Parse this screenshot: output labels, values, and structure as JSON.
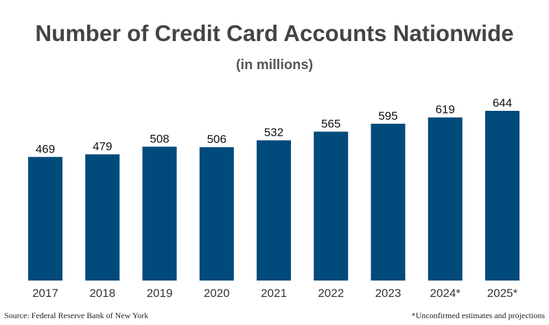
{
  "chart_data": {
    "type": "bar",
    "title": "Number of Credit Card Accounts Nationwide",
    "subtitle": "(in millions)",
    "categories": [
      "2017",
      "2018",
      "2019",
      "2020",
      "2021",
      "2022",
      "2023",
      "2024*",
      "2025*"
    ],
    "values": [
      469,
      479,
      508,
      506,
      532,
      565,
      595,
      619,
      644
    ],
    "value_labels": [
      "469",
      "479",
      "508",
      "506",
      "532",
      "565",
      "595",
      "619",
      "644"
    ],
    "xlabel": "",
    "ylabel": "",
    "grid": false,
    "bar_color": "#004a7c"
  },
  "footer": {
    "source": "Source: Federal Reserve Bank of New York",
    "note": "*Unconfirmed estimates and projections"
  }
}
